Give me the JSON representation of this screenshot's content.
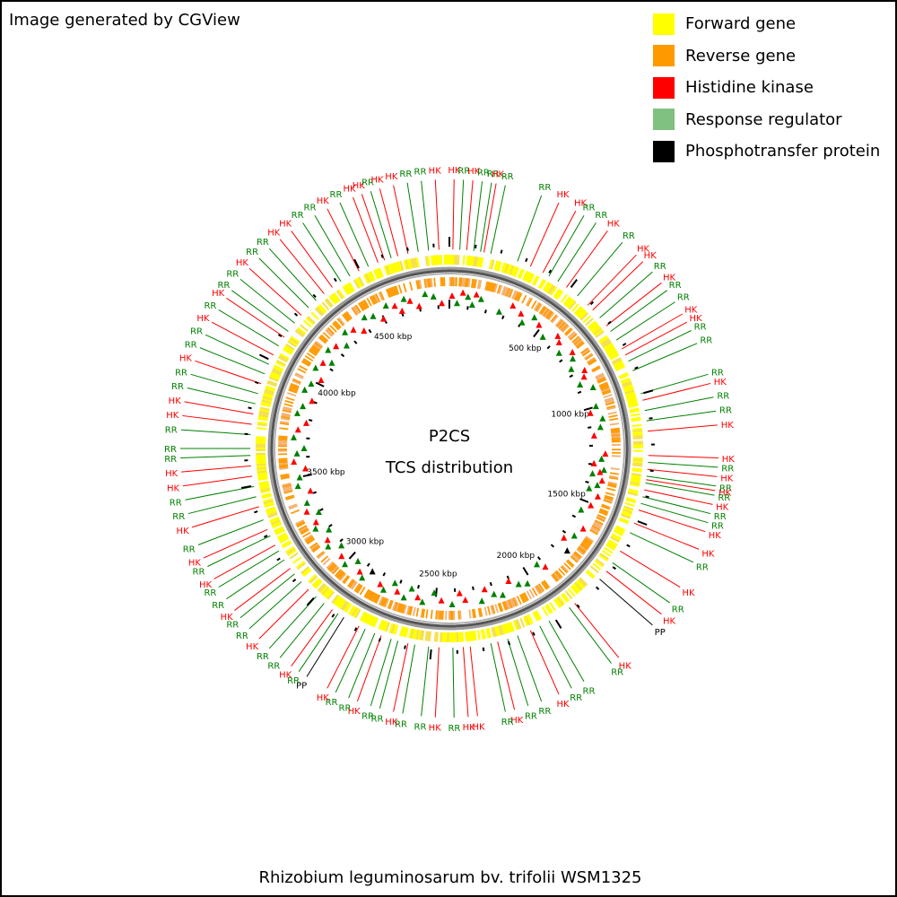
{
  "header": {
    "credit": "Image generated by CGView"
  },
  "legend": [
    {
      "label": "Forward gene",
      "color": "#ffff00"
    },
    {
      "label": "Reverse gene",
      "color": "#ff9900"
    },
    {
      "label": "Histidine kinase",
      "color": "#ff0000"
    },
    {
      "label": "Response regulator",
      "color": "#80c080"
    },
    {
      "label": "Phosphotransfer protein",
      "color": "#000000"
    }
  ],
  "map": {
    "title": "P2CS",
    "subtitle": "TCS distribution",
    "genome_length_kbp": 4860,
    "tick_labels": [
      "500 kbp",
      "1000 kbp",
      "1500 kbp",
      "2000 kbp",
      "2500 kbp",
      "3000 kbp",
      "3500 kbp",
      "4000 kbp",
      "4500 kbp"
    ],
    "label_colors": {
      "HK": "#ff0000",
      "RR": "#008000",
      "PP": "#000000"
    },
    "labels": [
      [
        "HK",
        1
      ],
      [
        "RR",
        3
      ],
      [
        "HK",
        5
      ],
      [
        "RR",
        7
      ],
      [
        "RR",
        9
      ],
      [
        "HK",
        10
      ],
      [
        "RR",
        12
      ],
      [
        "RR",
        20
      ],
      [
        "HK",
        24
      ],
      [
        "HK",
        28
      ],
      [
        "RR",
        30
      ],
      [
        "RR",
        33
      ],
      [
        "HK",
        36
      ],
      [
        "RR",
        40
      ],
      [
        "HK",
        44
      ],
      [
        "HK",
        46
      ],
      [
        "RR",
        49
      ],
      [
        "HK",
        52
      ],
      [
        "RR",
        54
      ],
      [
        "RR",
        57
      ],
      [
        "HK",
        60
      ],
      [
        "HK",
        62
      ],
      [
        "RR",
        64
      ],
      [
        "RR",
        67
      ],
      [
        "RR",
        74
      ],
      [
        "HK",
        76
      ],
      [
        "RR",
        79
      ],
      [
        "RR",
        82
      ],
      [
        "HK",
        85
      ],
      [
        "HK",
        92
      ],
      [
        "RR",
        94
      ],
      [
        "HK",
        96
      ],
      [
        "RR",
        98
      ],
      [
        "HK",
        99
      ],
      [
        "RR",
        100
      ],
      [
        "HK",
        102
      ],
      [
        "RR",
        104
      ],
      [
        "RR",
        106
      ],
      [
        "HK",
        108
      ],
      [
        "HK",
        112
      ],
      [
        "RR",
        115
      ],
      [
        "HK",
        121
      ],
      [
        "RR",
        125
      ],
      [
        "HK",
        128
      ],
      [
        "PP",
        131
      ],
      [
        "HK",
        141
      ],
      [
        "RR",
        143
      ],
      [
        "RR",
        150
      ],
      [
        "RR",
        153
      ],
      [
        "HK",
        156
      ],
      [
        "RR",
        160
      ],
      [
        "RR",
        163
      ],
      [
        "HK",
        166
      ],
      [
        "RR",
        168
      ],
      [
        "HK",
        174
      ],
      [
        "HK",
        176
      ],
      [
        "RR",
        179
      ],
      [
        "HK",
        183
      ],
      [
        "RR",
        186
      ],
      [
        "RR",
        190
      ],
      [
        "HK",
        192
      ],
      [
        "RR",
        195
      ],
      [
        "RR",
        197
      ],
      [
        "HK",
        200
      ],
      [
        "RR",
        202
      ],
      [
        "RR",
        205
      ],
      [
        "HK",
        207
      ],
      [
        "PP",
        212
      ],
      [
        "RR",
        214
      ],
      [
        "HK",
        216
      ],
      [
        "RR",
        219
      ],
      [
        "RR",
        222
      ],
      [
        "HK",
        225
      ],
      [
        "RR",
        228
      ],
      [
        "RR",
        231
      ],
      [
        "HK",
        233
      ],
      [
        "RR",
        236
      ],
      [
        "RR",
        239
      ],
      [
        "HK",
        241
      ],
      [
        "RR",
        244
      ],
      [
        "HK",
        246
      ],
      [
        "RR",
        249
      ],
      [
        "HK",
        253
      ],
      [
        "RR",
        256
      ],
      [
        "RR",
        259
      ],
      [
        "HK",
        262
      ],
      [
        "HK",
        265
      ],
      [
        "RR",
        268
      ],
      [
        "RR",
        270
      ],
      [
        "RR",
        274
      ],
      [
        "HK",
        277
      ],
      [
        "HK",
        280
      ],
      [
        "RR",
        283
      ],
      [
        "RR",
        286
      ],
      [
        "HK",
        289
      ],
      [
        "RR",
        292
      ],
      [
        "RR",
        295
      ],
      [
        "HK",
        298
      ],
      [
        "RR",
        301
      ],
      [
        "HK",
        304
      ],
      [
        "RR",
        306
      ],
      [
        "RR",
        309
      ],
      [
        "HK",
        312
      ],
      [
        "RR",
        315
      ],
      [
        "RR",
        318
      ],
      [
        "HK",
        321
      ],
      [
        "HK",
        324
      ],
      [
        "RR",
        327
      ],
      [
        "RR",
        330
      ],
      [
        "HK",
        333
      ],
      [
        "RR",
        336
      ],
      [
        "HK",
        339
      ],
      [
        "HK",
        341
      ],
      [
        "RR",
        343
      ],
      [
        "HK",
        345
      ],
      [
        "HK",
        348
      ],
      [
        "RR",
        351
      ],
      [
        "RR",
        354
      ],
      [
        "HK",
        357
      ]
    ]
  },
  "caption": "Rhizobium leguminosarum bv. trifolii WSM1325"
}
